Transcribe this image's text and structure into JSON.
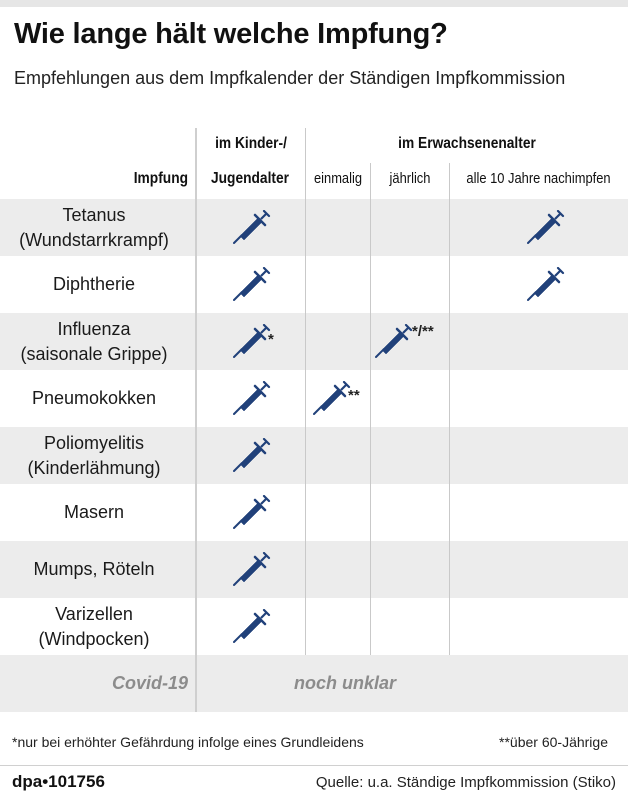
{
  "title": "Wie lange hält welche Impfung?",
  "subtitle": "Empfehlungen aus dem Impfkalender der Ständigen Impfkommission",
  "header": {
    "group_child_line1": "im Kinder-/",
    "group_child_line2": "Jugendalter",
    "group_adult": "im Erwachsenenalter",
    "col_vaccine": "Impfung",
    "col_once": "einmalig",
    "col_yearly": "jährlich",
    "col_every10": "alle 10 Jahre nachimpfen"
  },
  "rows": [
    {
      "line1": "Tetanus",
      "line2": "(Wundstarrkrampf)"
    },
    {
      "line1": "Diphtherie",
      "line2": ""
    },
    {
      "line1": "Influenza",
      "line2": "(saisonale Grippe)"
    },
    {
      "line1": "Pneumokokken",
      "line2": ""
    },
    {
      "line1": "Poliomyelitis",
      "line2": "(Kinderlähmung)"
    },
    {
      "line1": "Masern",
      "line2": ""
    },
    {
      "line1": "Mumps, Röteln",
      "line2": ""
    },
    {
      "line1": "Varizellen",
      "line2": "(Windpocken)"
    }
  ],
  "notes": {
    "influenza_child": "*",
    "influenza_yearly": "*/**",
    "pneumo_once": "**"
  },
  "covid": {
    "label": "Covid-19",
    "status": "noch unklar"
  },
  "footnotes": {
    "left": "*nur bei erhöhter Gefährdung infolge eines Grundleidens",
    "right": "**über 60-Jährige"
  },
  "brand": "dpa•101756",
  "source": "Quelle: u.a. Ständige Impfkommission (Stiko)",
  "colors": {
    "syringe": "#21417a",
    "shade": "#ececec",
    "covid_text": "#8c8c8c"
  },
  "icons": {
    "vaccination_mark": "syringe-icon"
  }
}
